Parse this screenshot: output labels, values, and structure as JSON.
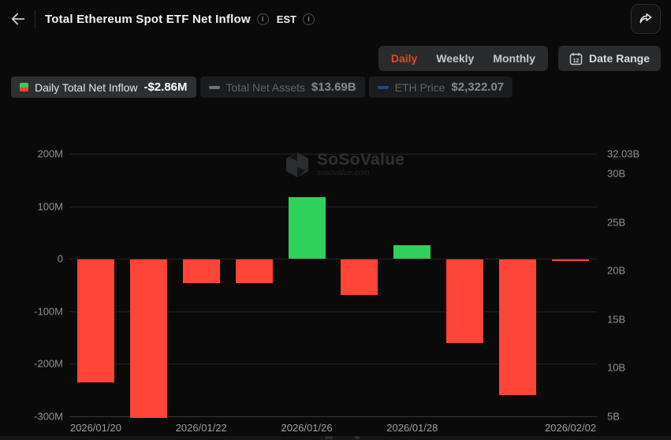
{
  "header": {
    "title": "Total Ethereum Spot ETF Net Inflow",
    "timezone": "EST"
  },
  "controls": {
    "tabs": [
      {
        "label": "Daily",
        "active": true
      },
      {
        "label": "Weekly",
        "active": false
      },
      {
        "label": "Monthly",
        "active": false
      }
    ],
    "active_tab_color": "#ed4423",
    "date_range": {
      "label": "Date Range",
      "calendar_day": "12"
    }
  },
  "legend": {
    "items": [
      {
        "label": "Daily Total Net Inflow",
        "value": "-$2.86M",
        "active": true,
        "swatch": "green-red-square"
      },
      {
        "label": "Total Net Assets",
        "value": "$13.69B",
        "active": false,
        "swatch": "gray-dash",
        "swatch_color": "#6f7377"
      },
      {
        "label": "ETH Price",
        "value": "$2,322.07",
        "active": false,
        "swatch": "blue-dash",
        "swatch_color": "#24428f"
      }
    ]
  },
  "watermark": {
    "name": "SoSoValue",
    "domain": "sosovalue.com"
  },
  "chart_data": {
    "type": "bar",
    "title": "Total Ethereum Spot ETF Net Inflow (Daily)",
    "x": [
      "2026/01/20",
      "2026/01/21",
      "2026/01/22",
      "2026/01/23",
      "2026/01/26",
      "2026/01/27",
      "2026/01/28",
      "2026/01/29",
      "2026/01/30",
      "2026/02/02"
    ],
    "series": [
      {
        "name": "Daily Total Net Inflow",
        "unit": "USD millions",
        "values": [
          -235,
          -303,
          -45,
          -45,
          117,
          -68,
          26,
          -159,
          -259,
          -2.86
        ]
      }
    ],
    "colors": {
      "positive": "#2fd15c",
      "negative": "#ff4438"
    },
    "y_left": {
      "range": [
        -300,
        200
      ],
      "ticks": [
        {
          "label": "200M",
          "value": 200
        },
        {
          "label": "100M",
          "value": 100
        },
        {
          "label": "0",
          "value": 0
        },
        {
          "label": "-100M",
          "value": -100
        },
        {
          "label": "-200M",
          "value": -200
        },
        {
          "label": "-300M",
          "value": -300
        }
      ]
    },
    "y_right": {
      "range": [
        5,
        32.03
      ],
      "ticks": [
        {
          "label": "32.03B",
          "value": 32.03
        },
        {
          "label": "30B",
          "value": 30
        },
        {
          "label": "25B",
          "value": 25
        },
        {
          "label": "20B",
          "value": 20
        },
        {
          "label": "15B",
          "value": 15
        },
        {
          "label": "10B",
          "value": 10
        },
        {
          "label": "5B",
          "value": 5
        }
      ]
    },
    "x_ticks": [
      {
        "index": 0,
        "label": "2026/01/20"
      },
      {
        "index": 2,
        "label": "2026/01/22"
      },
      {
        "index": 4,
        "label": "2026/01/26"
      },
      {
        "index": 6,
        "label": "2026/01/28"
      },
      {
        "index": 9,
        "label": "2026/02/02"
      }
    ],
    "grid": true,
    "legend_position": "top-left"
  }
}
